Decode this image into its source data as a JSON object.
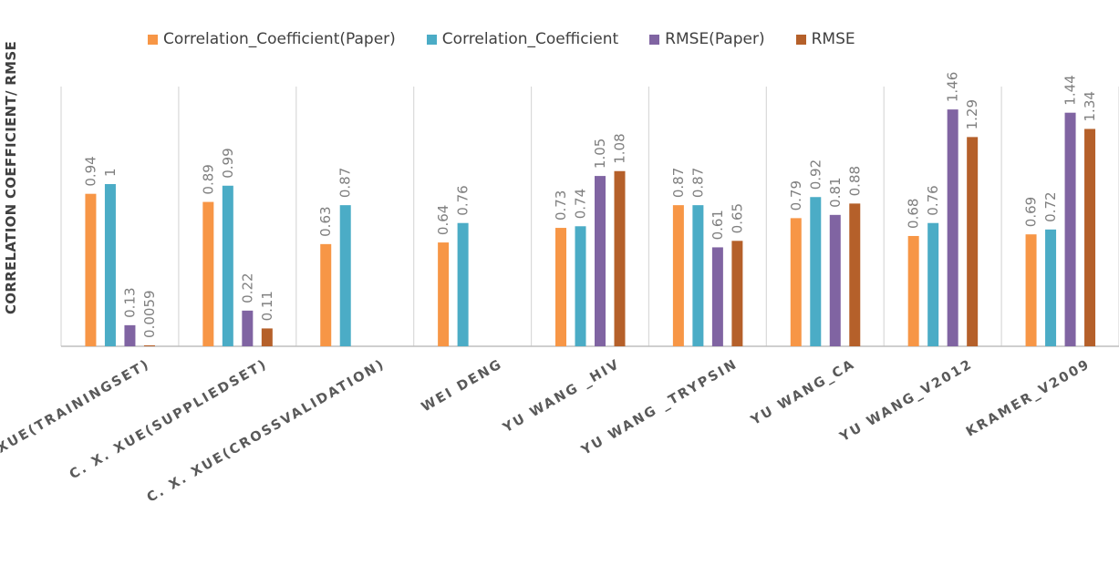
{
  "chart_data": {
    "type": "bar",
    "title": "",
    "xlabel": "",
    "ylabel": "CORRELATION COEFFICIENT/ RMSE",
    "ylim": [
      0,
      1.6
    ],
    "grid": "vertical separators between categories",
    "legend_position": "top",
    "categories": [
      "C. X. XUE(TRAININGSET)",
      "C. X. XUE(SUPPLIEDSET)",
      "C. X. XUE(CROSSVALIDATION)",
      "WEI DENG",
      "YU WANG _HIV",
      "YU WANG _TRYPSIN",
      "YU WANG_CA",
      "YU WANG_V2012",
      "KRAMER_V2009"
    ],
    "series": [
      {
        "name": "Correlation_Coefficient(Paper)",
        "color": "#f79646",
        "values": [
          0.94,
          0.89,
          0.63,
          0.64,
          0.73,
          0.87,
          0.79,
          0.68,
          0.69
        ],
        "labels": [
          "0.94",
          "0.89",
          "0.63",
          "0.64",
          "0.73",
          "0.87",
          "0.79",
          "0.68",
          "0.69"
        ]
      },
      {
        "name": "Correlation_Coefficient",
        "color": "#4bacc6",
        "values": [
          1,
          0.99,
          0.87,
          0.76,
          0.74,
          0.87,
          0.92,
          0.76,
          0.72
        ],
        "labels": [
          "1",
          "0.99",
          "0.87",
          "0.76",
          "0.74",
          "0.87",
          "0.92",
          "0.76",
          "0.72"
        ]
      },
      {
        "name": "RMSE(Paper)",
        "color": "#8064a2",
        "values": [
          0.13,
          0.22,
          null,
          null,
          1.05,
          0.61,
          0.81,
          1.46,
          1.44
        ],
        "labels": [
          "0.13",
          "0.22",
          null,
          null,
          "1.05",
          "0.61",
          "0.81",
          "1.46",
          "1.44"
        ]
      },
      {
        "name": "RMSE",
        "color": "#b5602a",
        "values": [
          0.0059,
          0.11,
          null,
          null,
          1.08,
          0.65,
          0.88,
          1.29,
          1.34
        ],
        "labels": [
          "0.0059",
          "0.11",
          null,
          null,
          "1.08",
          "0.65",
          "0.88",
          "1.29",
          "1.34"
        ]
      }
    ]
  }
}
